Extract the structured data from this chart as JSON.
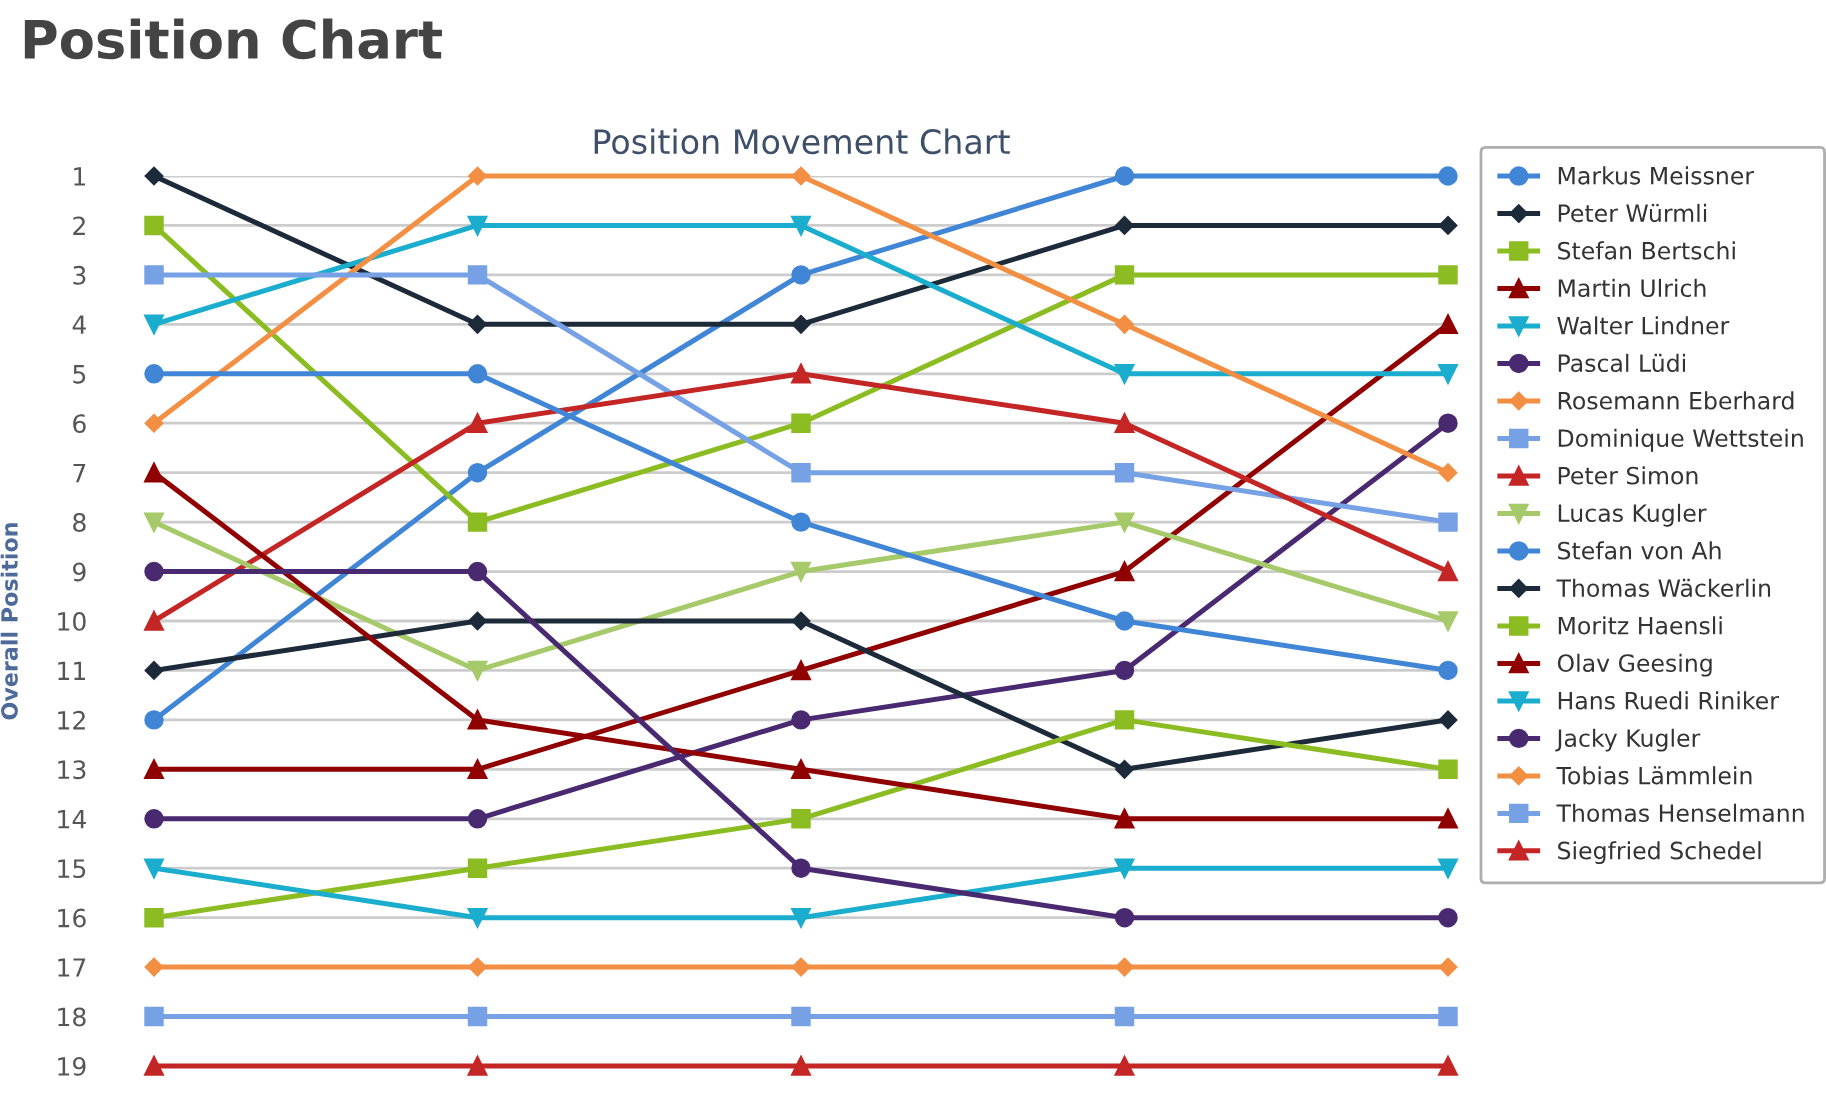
{
  "chart_data": {
    "type": "line",
    "title": "Position Chart",
    "subtitle": "Position Movement Chart",
    "ylabel": "Overall Position",
    "categories": [
      null,
      null,
      null,
      null,
      null
    ],
    "ylim": [
      19,
      1
    ],
    "yticks": [
      1,
      2,
      3,
      4,
      5,
      6,
      7,
      8,
      9,
      10,
      11,
      12,
      13,
      14,
      15,
      16,
      17,
      18,
      19
    ],
    "grid": "y",
    "legend": "right",
    "series": [
      {
        "name": "Markus Meissner",
        "color": "#4185d6",
        "marker": "circle",
        "values": [
          12,
          7,
          3,
          1,
          1
        ]
      },
      {
        "name": "Peter Würmli",
        "color": "#1c2a3a",
        "marker": "diamond",
        "values": [
          1,
          4,
          4,
          2,
          2
        ]
      },
      {
        "name": "Stefan Bertschi",
        "color": "#8bbc21",
        "marker": "square",
        "values": [
          2,
          8,
          6,
          3,
          3
        ]
      },
      {
        "name": "Martin Ulrich",
        "color": "#910000",
        "marker": "triangle",
        "values": [
          13,
          13,
          11,
          9,
          4
        ]
      },
      {
        "name": "Walter Lindner",
        "color": "#1aadce",
        "marker": "triangle_down",
        "values": [
          4,
          2,
          2,
          5,
          5
        ]
      },
      {
        "name": "Pascal Lüdi",
        "color": "#492970",
        "marker": "circle",
        "values": [
          14,
          14,
          12,
          11,
          6
        ]
      },
      {
        "name": "Rosemann Eberhard",
        "color": "#f28f43",
        "marker": "diamond",
        "values": [
          6,
          1,
          1,
          4,
          7
        ]
      },
      {
        "name": "Dominique Wettstein",
        "color": "#77a1e5",
        "marker": "square",
        "values": [
          3,
          3,
          7,
          7,
          8
        ]
      },
      {
        "name": "Peter Simon",
        "color": "#c42525",
        "marker": "triangle",
        "values": [
          10,
          6,
          5,
          6,
          9
        ]
      },
      {
        "name": "Lucas Kugler",
        "color": "#a6c96a",
        "marker": "triangle_down",
        "values": [
          8,
          11,
          9,
          8,
          10
        ]
      },
      {
        "name": "Stefan von Ah",
        "color": "#4185d6",
        "marker": "circle",
        "values": [
          5,
          5,
          8,
          10,
          11
        ]
      },
      {
        "name": "Thomas Wäckerlin",
        "color": "#1c2a3a",
        "marker": "diamond",
        "values": [
          11,
          10,
          10,
          13,
          12
        ]
      },
      {
        "name": "Moritz Haensli",
        "color": "#8bbc21",
        "marker": "square",
        "values": [
          16,
          15,
          14,
          12,
          13
        ]
      },
      {
        "name": "Olav Geesing",
        "color": "#910000",
        "marker": "triangle",
        "values": [
          7,
          12,
          13,
          14,
          14
        ]
      },
      {
        "name": "Hans Ruedi Riniker",
        "color": "#1aadce",
        "marker": "triangle_down",
        "values": [
          15,
          16,
          16,
          15,
          15
        ]
      },
      {
        "name": "Jacky Kugler",
        "color": "#492970",
        "marker": "circle",
        "values": [
          9,
          9,
          15,
          16,
          16
        ]
      },
      {
        "name": "Tobias Lämmlein",
        "color": "#f28f43",
        "marker": "diamond",
        "values": [
          17,
          17,
          17,
          17,
          17
        ]
      },
      {
        "name": "Thomas Henselmann",
        "color": "#77a1e5",
        "marker": "square",
        "values": [
          18,
          18,
          18,
          18,
          18
        ]
      },
      {
        "name": "Siegfried Schedel",
        "color": "#c42525",
        "marker": "triangle",
        "values": [
          19,
          19,
          19,
          19,
          19
        ]
      }
    ]
  }
}
